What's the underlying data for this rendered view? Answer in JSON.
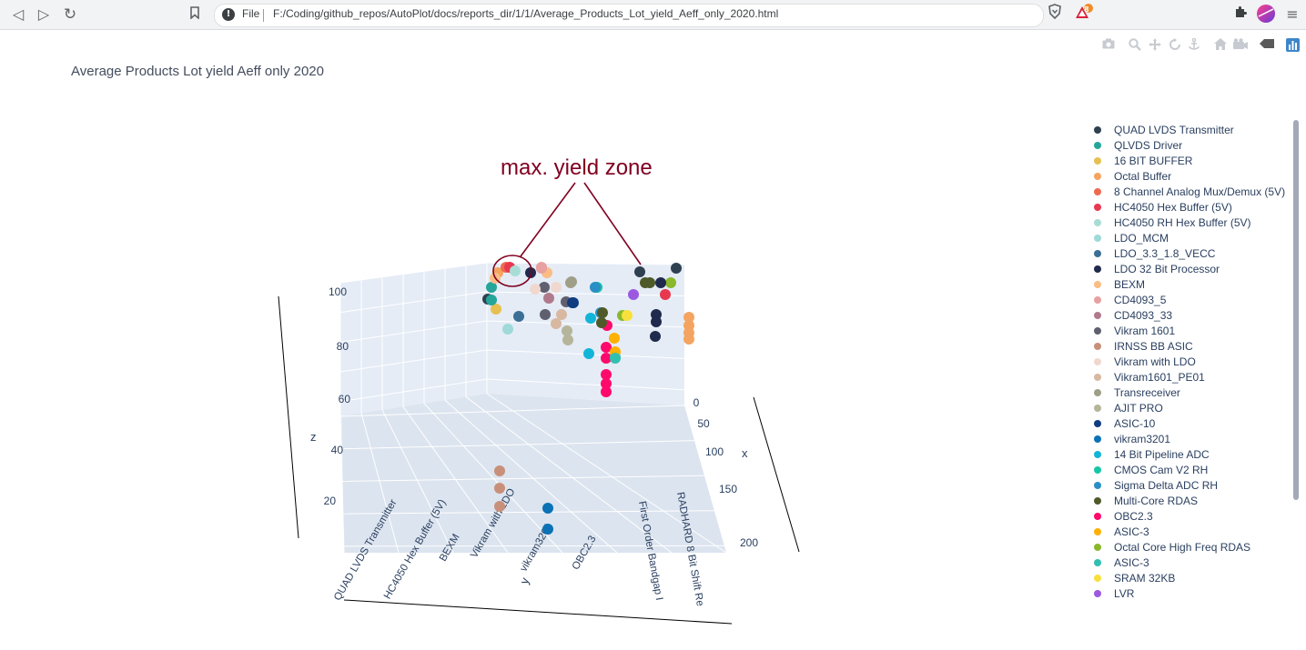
{
  "browser": {
    "file_label": "File",
    "url": "F:/Coding/github_repos/AutoPlot/docs/reports_dir/1/1/Average_Products_Lot_yield_Aeff_only_2020.html",
    "brave_badge": "8",
    "nav_icons": [
      "back-icon",
      "forward-icon",
      "reload-icon",
      "bookmark-icon"
    ]
  },
  "modebar": {
    "icons": [
      "camera-icon",
      "zoom-icon",
      "pan-icon",
      "orbit-icon",
      "turntable-icon",
      "home-icon",
      "camera-view-icon",
      "hover-icon",
      "plotly-logo-icon"
    ]
  },
  "annotation": {
    "text": "max. yield zone",
    "color": "#800020"
  },
  "chart_data": {
    "type": "scatter3d",
    "title": "Average Products Lot yield Aeff only 2020",
    "x_axis": {
      "label": "x",
      "ticks": [
        "0",
        "50",
        "100",
        "150",
        "200"
      ],
      "range": [
        0,
        210
      ]
    },
    "y_axis": {
      "label": "y",
      "ticks": [
        "QUAD LVDS Transmitter",
        "HC4050 Hex Buffer (5V)",
        "BEXM",
        "Vikram with LDO",
        "vikram3201",
        "OBC2.3",
        "First Order Bandgap I",
        "RADHARD 8 Bit Shift Re"
      ]
    },
    "z_axis": {
      "label": "z",
      "ticks": [
        "20",
        "40",
        "60",
        "80",
        "100"
      ],
      "range": [
        10,
        100
      ]
    },
    "legend_position": "right",
    "series": [
      {
        "name": "QUAD LVDS Transmitter",
        "color": "#2f4050"
      },
      {
        "name": "QLVDS Driver",
        "color": "#26a69a"
      },
      {
        "name": "16 BIT BUFFER",
        "color": "#e6c050"
      },
      {
        "name": "Octal Buffer",
        "color": "#f4a460"
      },
      {
        "name": "8 Channel Analog Mux/Demux (5V)",
        "color": "#ee6a4f"
      },
      {
        "name": "HC4050 Hex Buffer (5V)",
        "color": "#e8384f"
      },
      {
        "name": "HC4050 RH Hex Buffer (5V)",
        "color": "#a8ddd5"
      },
      {
        "name": "LDO_MCM",
        "color": "#9fd9d9"
      },
      {
        "name": "LDO_3.3_1.8_VECC",
        "color": "#3b6f95"
      },
      {
        "name": "LDO 32 Bit Processor",
        "color": "#1f2a4d"
      },
      {
        "name": "BEXM",
        "color": "#fbbd84"
      },
      {
        "name": "CD4093_5",
        "color": "#e8a0a0"
      },
      {
        "name": "CD4093_33",
        "color": "#b07a8c"
      },
      {
        "name": "Vikram 1601",
        "color": "#5f5f6f"
      },
      {
        "name": "IRNSS BB ASIC",
        "color": "#c8907a"
      },
      {
        "name": "Vikram with LDO",
        "color": "#f0d8cf"
      },
      {
        "name": "Vikram1601_PE01",
        "color": "#d8b8a0"
      },
      {
        "name": "Transreceiver",
        "color": "#9f9f88"
      },
      {
        "name": "AJIT PRO",
        "color": "#b5b59a"
      },
      {
        "name": "ASIC-10",
        "color": "#103d80"
      },
      {
        "name": "vikram3201",
        "color": "#0a72b5"
      },
      {
        "name": "14 Bit Pipeline ADC",
        "color": "#12b5d8"
      },
      {
        "name": "CMOS Cam V2 RH",
        "color": "#15c7a8"
      },
      {
        "name": "Sigma Delta ADC RH",
        "color": "#2a8fc4"
      },
      {
        "name": "Multi-Core RDAS",
        "color": "#4f5a2a"
      },
      {
        "name": "OBC2.3",
        "color": "#ff0a6c"
      },
      {
        "name": "ASIC-3",
        "color": "#ffb000"
      },
      {
        "name": "Octal Core High Freq RDAS",
        "color": "#8ab82a"
      },
      {
        "name": "ASIC-3",
        "color": "#31c0b0"
      },
      {
        "name": "SRAM 32KB",
        "color": "#f8e03c"
      },
      {
        "name": "LVR",
        "color": "#9b59e0"
      }
    ],
    "points": [
      {
        "series": 0,
        "x": 20,
        "y": 0,
        "z": 98
      },
      {
        "series": 1,
        "x": 20,
        "y": 0,
        "z": 95
      },
      {
        "series": 2,
        "x": 30,
        "y": 0,
        "z": 93
      },
      {
        "series": 3,
        "x": 10,
        "y": 0,
        "z": 99
      },
      {
        "series": 4,
        "x": 5,
        "y": 1,
        "z": 99
      },
      {
        "series": 5,
        "x": 5,
        "y": 1,
        "z": 100
      },
      {
        "series": 6,
        "x": 5,
        "y": 1,
        "z": 99
      },
      {
        "series": 7,
        "x": 60,
        "y": 1,
        "z": 88
      },
      {
        "series": 8,
        "x": 60,
        "y": 1,
        "z": 92
      },
      {
        "series": 9,
        "x": 5,
        "y": 2,
        "z": 99
      },
      {
        "series": 10,
        "x": 40,
        "y": 7,
        "z": 92
      },
      {
        "series": 11,
        "x": 5,
        "y": 2,
        "z": 100
      },
      {
        "series": 12,
        "x": 30,
        "y": 2,
        "z": 96
      },
      {
        "series": 13,
        "x": 30,
        "y": 2,
        "z": 95
      },
      {
        "series": 14,
        "x": 190,
        "y": 2,
        "z": 15
      },
      {
        "series": 15,
        "x": 30,
        "y": 3,
        "z": 96
      },
      {
        "series": 16,
        "x": 30,
        "y": 3,
        "z": 94
      },
      {
        "series": 17,
        "x": 40,
        "y": 3,
        "z": 92
      },
      {
        "series": 18,
        "x": 50,
        "y": 3,
        "z": 90
      },
      {
        "series": 19,
        "x": 30,
        "y": 3,
        "z": 96
      },
      {
        "series": 20,
        "x": 190,
        "y": 4,
        "z": 15
      },
      {
        "series": 21,
        "x": 60,
        "y": 4,
        "z": 88
      },
      {
        "series": 22,
        "x": 10,
        "y": 4,
        "z": 99
      },
      {
        "series": 23,
        "x": 60,
        "y": 4,
        "z": 87
      },
      {
        "series": 24,
        "x": 30,
        "y": 4,
        "z": 95
      },
      {
        "series": 25,
        "x": 90,
        "y": 5,
        "z": 70
      },
      {
        "series": 26,
        "x": 70,
        "y": 5,
        "z": 86
      },
      {
        "series": 27,
        "x": 40,
        "y": 5,
        "z": 95
      },
      {
        "series": 28,
        "x": 60,
        "y": 5,
        "z": 88
      },
      {
        "series": 29,
        "x": 40,
        "y": 5,
        "z": 94
      },
      {
        "series": 30,
        "x": 10,
        "y": 5,
        "z": 98
      }
    ]
  }
}
